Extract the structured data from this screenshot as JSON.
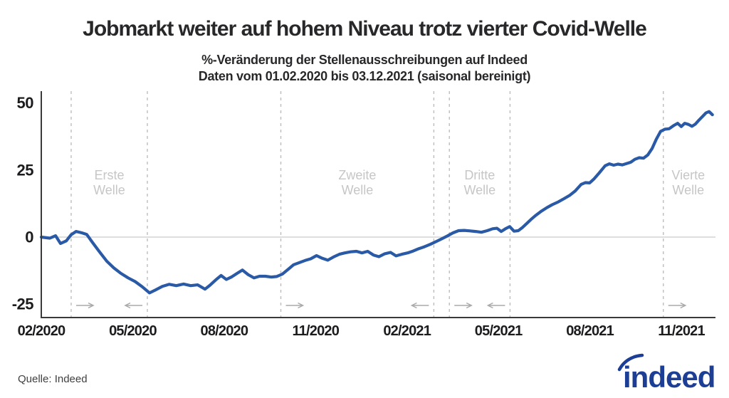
{
  "header": {
    "title": "Jobmarkt weiter auf hohem Niveau trotz vierter Covid-Welle",
    "subtitle_line1": "%-Veränderung der Stellenausschreibungen auf Indeed",
    "subtitle_line2": "Daten vom 01.02.2020 bis 03.12.2021 (saisonal bereinigt)"
  },
  "footer": {
    "source": "Quelle: Indeed",
    "logo_text": "indeed"
  },
  "colors": {
    "line": "#2a5aa6",
    "logo": "#1c3e94",
    "wave_text": "#c6c6c6",
    "dashed": "#bdbdbd",
    "arrow": "#aaaaaa",
    "axis": "#3a3a3a",
    "gridline": "#c9c9c9",
    "tick_text": "#1c1c1e"
  },
  "chart_data": {
    "type": "line",
    "title": "Jobmarkt weiter auf hohem Niveau trotz vierter Covid-Welle",
    "subtitle": "%-Veränderung der Stellenausschreibungen auf Indeed — Daten vom 01.02.2020 bis 03.12.2021 (saisonal bereinigt)",
    "x_unit": "Monate seit 01.02.2020",
    "x_range": [
      0,
      22.12
    ],
    "x_tick_positions": [
      0,
      3,
      6,
      9,
      12,
      15,
      18,
      21
    ],
    "x_tick_labels": [
      "02/2020",
      "05/2020",
      "08/2020",
      "11/2020",
      "02/2021",
      "05/2021",
      "08/2021",
      "11/2021"
    ],
    "y_ticks": [
      50,
      25,
      0,
      -25
    ],
    "y_range": [
      -30,
      54.4
    ],
    "zero_gridline": true,
    "legend": "none",
    "waves": [
      {
        "label": "Erste Welle",
        "start_month": 0.98,
        "end_month": 3.48
      },
      {
        "label": "Zweite Welle",
        "start_month": 7.86,
        "end_month": 12.88
      },
      {
        "label": "Dritte Welle",
        "start_month": 13.39,
        "end_month": 15.38
      },
      {
        "label": "Vierte Welle",
        "start_month": 20.41,
        "end_month": null
      }
    ],
    "series": [
      {
        "name": "%-Veränderung der Stellenausschreibungen (saisonal bereinigt)",
        "points": [
          [
            0,
            0
          ],
          [
            0.28,
            -0.4
          ],
          [
            0.47,
            0.5
          ],
          [
            0.63,
            -2.4
          ],
          [
            0.82,
            -1.4
          ],
          [
            0.98,
            0.9
          ],
          [
            1.14,
            2.1
          ],
          [
            1.33,
            1.6
          ],
          [
            1.49,
            1.0
          ],
          [
            1.68,
            -2.0
          ],
          [
            1.91,
            -5.5
          ],
          [
            2.15,
            -9.0
          ],
          [
            2.38,
            -11.5
          ],
          [
            2.61,
            -13.5
          ],
          [
            2.85,
            -15.2
          ],
          [
            3.08,
            -16.6
          ],
          [
            3.31,
            -18.5
          ],
          [
            3.55,
            -20.8
          ],
          [
            3.73,
            -19.8
          ],
          [
            3.97,
            -18.4
          ],
          [
            4.2,
            -17.6
          ],
          [
            4.43,
            -18.1
          ],
          [
            4.67,
            -17.5
          ],
          [
            4.9,
            -18.1
          ],
          [
            5.13,
            -17.8
          ],
          [
            5.37,
            -19.4
          ],
          [
            5.53,
            -18.0
          ],
          [
            5.72,
            -16.0
          ],
          [
            5.9,
            -14.3
          ],
          [
            6.07,
            -15.8
          ],
          [
            6.25,
            -14.8
          ],
          [
            6.44,
            -13.4
          ],
          [
            6.6,
            -12.3
          ],
          [
            6.79,
            -14.0
          ],
          [
            6.98,
            -15.2
          ],
          [
            7.16,
            -14.6
          ],
          [
            7.35,
            -14.6
          ],
          [
            7.54,
            -14.9
          ],
          [
            7.72,
            -14.7
          ],
          [
            7.91,
            -13.8
          ],
          [
            8.1,
            -12.0
          ],
          [
            8.28,
            -10.3
          ],
          [
            8.47,
            -9.5
          ],
          [
            8.66,
            -8.7
          ],
          [
            8.84,
            -8.1
          ],
          [
            9.03,
            -6.9
          ],
          [
            9.22,
            -7.9
          ],
          [
            9.4,
            -8.6
          ],
          [
            9.59,
            -7.4
          ],
          [
            9.78,
            -6.4
          ],
          [
            9.96,
            -5.9
          ],
          [
            10.15,
            -5.5
          ],
          [
            10.34,
            -5.3
          ],
          [
            10.52,
            -5.9
          ],
          [
            10.71,
            -5.3
          ],
          [
            10.9,
            -6.7
          ],
          [
            11.08,
            -7.3
          ],
          [
            11.27,
            -6.2
          ],
          [
            11.46,
            -5.7
          ],
          [
            11.64,
            -7.0
          ],
          [
            11.83,
            -6.4
          ],
          [
            12.02,
            -5.9
          ],
          [
            12.2,
            -5.2
          ],
          [
            12.39,
            -4.3
          ],
          [
            12.57,
            -3.6
          ],
          [
            12.76,
            -2.7
          ],
          [
            12.95,
            -1.7
          ],
          [
            13.13,
            -0.7
          ],
          [
            13.32,
            0.4
          ],
          [
            13.51,
            1.6
          ],
          [
            13.69,
            2.4
          ],
          [
            13.88,
            2.5
          ],
          [
            14.07,
            2.3
          ],
          [
            14.25,
            2.1
          ],
          [
            14.44,
            1.8
          ],
          [
            14.63,
            2.4
          ],
          [
            14.81,
            3.1
          ],
          [
            14.95,
            3.3
          ],
          [
            15.09,
            2.1
          ],
          [
            15.23,
            3.1
          ],
          [
            15.37,
            3.9
          ],
          [
            15.51,
            2.2
          ],
          [
            15.65,
            2.4
          ],
          [
            15.79,
            3.6
          ],
          [
            15.93,
            5.1
          ],
          [
            16.07,
            6.6
          ],
          [
            16.21,
            8.0
          ],
          [
            16.4,
            9.6
          ],
          [
            16.59,
            11.0
          ],
          [
            16.77,
            12.1
          ],
          [
            16.96,
            13.1
          ],
          [
            17.15,
            14.3
          ],
          [
            17.33,
            15.5
          ],
          [
            17.52,
            17.2
          ],
          [
            17.71,
            19.6
          ],
          [
            17.85,
            20.3
          ],
          [
            17.99,
            20.2
          ],
          [
            18.13,
            21.6
          ],
          [
            18.31,
            24.0
          ],
          [
            18.5,
            26.6
          ],
          [
            18.64,
            27.3
          ],
          [
            18.78,
            26.8
          ],
          [
            18.92,
            27.2
          ],
          [
            19.06,
            26.9
          ],
          [
            19.2,
            27.4
          ],
          [
            19.34,
            27.9
          ],
          [
            19.48,
            29.0
          ],
          [
            19.62,
            29.6
          ],
          [
            19.76,
            29.4
          ],
          [
            19.9,
            30.6
          ],
          [
            20.04,
            33.0
          ],
          [
            20.18,
            36.5
          ],
          [
            20.32,
            39.4
          ],
          [
            20.46,
            40.2
          ],
          [
            20.6,
            40.4
          ],
          [
            20.74,
            41.5
          ],
          [
            20.88,
            42.4
          ],
          [
            21.0,
            41.2
          ],
          [
            21.11,
            42.4
          ],
          [
            21.23,
            42.0
          ],
          [
            21.35,
            41.3
          ],
          [
            21.46,
            42.1
          ],
          [
            21.58,
            43.6
          ],
          [
            21.7,
            45.0
          ],
          [
            21.81,
            46.3
          ],
          [
            21.91,
            46.8
          ],
          [
            22.02,
            45.6
          ]
        ]
      }
    ]
  }
}
